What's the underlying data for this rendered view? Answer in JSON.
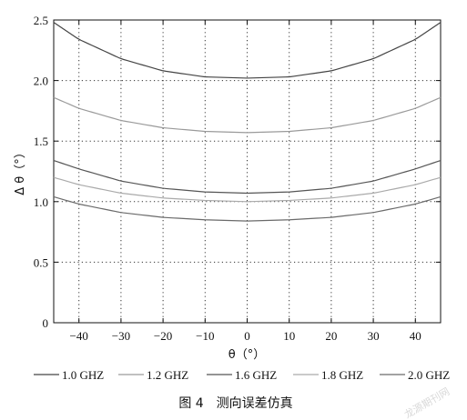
{
  "chart_data": {
    "type": "line",
    "xlabel": "θ（°）",
    "ylabel": "Δ θ（°）",
    "xlim": [
      -46,
      46
    ],
    "ylim": [
      0,
      2.5
    ],
    "xticks": [
      -40,
      -30,
      -20,
      -10,
      0,
      10,
      20,
      30,
      40
    ],
    "yticks": [
      0,
      0.5,
      1.0,
      1.5,
      2.0,
      2.5
    ],
    "xtick_labels": [
      "−40",
      "−30",
      "−20",
      "−10",
      "0",
      "10",
      "20",
      "30",
      "40"
    ],
    "ytick_labels": [
      "0",
      "0.5",
      "1.0",
      "1.5",
      "2.0",
      "2.5"
    ],
    "grid": true,
    "legend_position": "bottom",
    "x": [
      -46,
      -40,
      -30,
      -20,
      -10,
      0,
      10,
      20,
      30,
      40,
      46
    ],
    "series": [
      {
        "name": "1.0 GHZ",
        "color": "#444444",
        "values": [
          2.48,
          2.34,
          2.18,
          2.08,
          2.03,
          2.02,
          2.03,
          2.08,
          2.18,
          2.34,
          2.48
        ]
      },
      {
        "name": "1.2 GHZ",
        "color": "#9a9a9a",
        "values": [
          1.86,
          1.77,
          1.67,
          1.61,
          1.58,
          1.57,
          1.58,
          1.61,
          1.67,
          1.77,
          1.86
        ]
      },
      {
        "name": "1.6 GHZ",
        "color": "#555555",
        "values": [
          1.34,
          1.27,
          1.17,
          1.11,
          1.08,
          1.07,
          1.08,
          1.11,
          1.17,
          1.27,
          1.34
        ]
      },
      {
        "name": "1.8 GHZ",
        "color": "#aaaaaa",
        "values": [
          1.2,
          1.14,
          1.07,
          1.03,
          1.01,
          1.0,
          1.01,
          1.03,
          1.07,
          1.14,
          1.2
        ]
      },
      {
        "name": "2.0 GHZ",
        "color": "#6a6a6a",
        "values": [
          1.04,
          0.98,
          0.91,
          0.87,
          0.85,
          0.84,
          0.85,
          0.87,
          0.91,
          0.98,
          1.04
        ]
      }
    ]
  },
  "caption": "图 4　测向误差仿真",
  "watermark": "龙源期刊网"
}
